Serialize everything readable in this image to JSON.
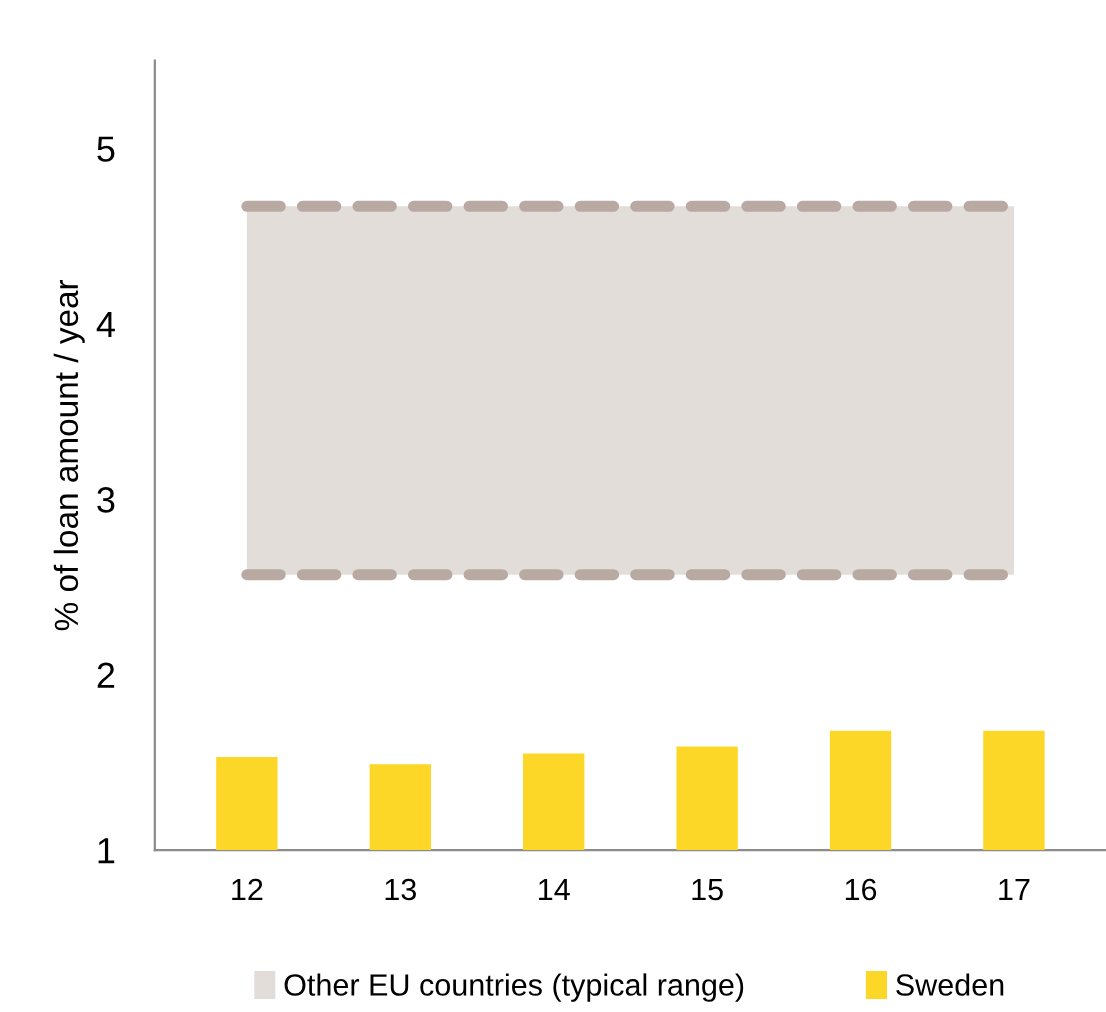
{
  "chart_data": {
    "type": "bar",
    "ylabel": "% of loan amount / year",
    "categories": [
      "12",
      "13",
      "14",
      "15",
      "16",
      "17"
    ],
    "series": [
      {
        "name": "Sweden",
        "color": "#fdd727",
        "values": [
          1.53,
          1.49,
          1.55,
          1.59,
          1.68,
          1.68
        ]
      }
    ],
    "bands": [
      {
        "axis": "y",
        "from": 2.57,
        "to": 4.67,
        "label": "Other EU countries (typical range)",
        "color": "#e2ddd9"
      }
    ],
    "ref_lines": [
      {
        "axis": "y",
        "value": 2.57,
        "color": "#b8aaa2",
        "line_style": "dashed"
      },
      {
        "axis": "y",
        "value": 4.67,
        "color": "#b8aaa2",
        "line_style": "dashed"
      }
    ],
    "ylim": [
      1,
      5.5
    ],
    "yticks": [
      1,
      2,
      3,
      4,
      5
    ],
    "grid": false,
    "legend": "bottom"
  }
}
